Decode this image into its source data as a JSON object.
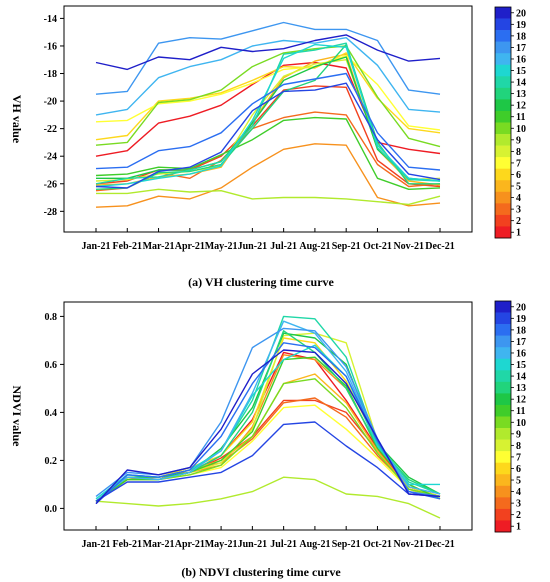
{
  "palette": [
    "#ee1c24",
    "#f2411f",
    "#f46a1d",
    "#f7911d",
    "#fbb61d",
    "#fdd81c",
    "#ffff33",
    "#d7f232",
    "#b1ea2d",
    "#79db22",
    "#3fcd2a",
    "#1ec746",
    "#21d47c",
    "#20d7a7",
    "#1ed7d1",
    "#3fb5f0",
    "#3d96f0",
    "#2b6ef1",
    "#2445e3",
    "#1f1fc9"
  ],
  "charts": [
    {
      "type": "line",
      "caption": "(a) VH clustering time curve",
      "ylabel": "VH value",
      "categories": [
        "Jan-21",
        "Feb-21",
        "Mar-21",
        "Apr-21",
        "May-21",
        "Jun-21",
        "Jul-21",
        "Aug-21",
        "Sep-21",
        "Oct-21",
        "Nov-21",
        "Dec-21"
      ],
      "ylim": [
        -29.5,
        -13.1
      ],
      "yticks": [
        "-14",
        "-16",
        "-18",
        "-20",
        "-22",
        "-24",
        "-26",
        "-28"
      ],
      "ytick_values": [
        -14,
        -16,
        -18,
        -20,
        -22,
        -24,
        -26,
        -28
      ],
      "colorbar_ticks": [
        "20",
        "19",
        "18",
        "17",
        "16",
        "15",
        "14",
        "13",
        "12",
        "11",
        "10",
        "9",
        "8",
        "7",
        "6",
        "5",
        "4",
        "3",
        "2",
        "1"
      ],
      "series": [
        {
          "values": [
            -24.0,
            -23.6,
            -21.6,
            -21.1,
            -20.3,
            -18.8,
            -17.4,
            -17.2,
            -17.6,
            -23.0,
            -23.5,
            -23.8
          ]
        },
        {
          "values": [
            -26.0,
            -25.8,
            -25.0,
            -25.0,
            -24.0,
            -21.8,
            -19.2,
            -18.9,
            -19.0,
            -24.3,
            -26.0,
            -26.2
          ]
        },
        {
          "values": [
            -26.5,
            -26.3,
            -25.2,
            -25.6,
            -24.3,
            -22.0,
            -21.2,
            -20.8,
            -21.0,
            -24.6,
            -26.2,
            -26.0
          ]
        },
        {
          "values": [
            -27.7,
            -27.6,
            -26.9,
            -27.1,
            -26.3,
            -24.8,
            -23.5,
            -23.1,
            -23.2,
            -27.0,
            -27.6,
            -27.4
          ]
        },
        {
          "values": [
            -26.1,
            -26.0,
            -25.5,
            -25.3,
            -24.8,
            -21.5,
            -18.3,
            -17.1,
            -16.6,
            -23.5,
            -25.8,
            -26.1
          ]
        },
        {
          "values": [
            -22.8,
            -22.5,
            -20.0,
            -19.8,
            -19.4,
            -18.5,
            -17.5,
            -17.6,
            -16.5,
            -19.8,
            -22.0,
            -22.3
          ]
        },
        {
          "values": [
            -21.5,
            -21.4,
            -20.2,
            -20.0,
            -19.5,
            -18.7,
            -17.7,
            -17.5,
            -16.7,
            -18.8,
            -21.8,
            -22.1
          ]
        },
        {
          "values": [
            -25.8,
            -25.7,
            -25.3,
            -25.1,
            -24.7,
            -21.0,
            -18.2,
            -17.3,
            -17.0,
            -23.2,
            -25.7,
            -25.6
          ]
        },
        {
          "values": [
            -26.7,
            -26.7,
            -26.4,
            -26.6,
            -26.5,
            -27.1,
            -27.0,
            -27.0,
            -27.1,
            -27.3,
            -27.5,
            -26.9
          ]
        },
        {
          "values": [
            -23.2,
            -23.0,
            -20.1,
            -19.9,
            -19.2,
            -17.5,
            -16.5,
            -16.2,
            -16.0,
            -19.7,
            -22.7,
            -23.3
          ]
        },
        {
          "values": [
            -25.4,
            -25.3,
            -24.8,
            -24.9,
            -23.9,
            -22.8,
            -21.4,
            -21.2,
            -21.3,
            -25.6,
            -26.4,
            -26.3
          ]
        },
        {
          "values": [
            -25.6,
            -25.6,
            -25.0,
            -25.0,
            -24.4,
            -21.6,
            -18.5,
            -17.5,
            -16.8,
            -23.5,
            -25.6,
            -25.8
          ]
        },
        {
          "values": [
            -26.4,
            -26.3,
            -25.2,
            -25.1,
            -24.6,
            -22.0,
            -19.3,
            -18.5,
            -15.9,
            -23.0,
            -26.0,
            -26.0
          ]
        },
        {
          "values": [
            -26.0,
            -25.6,
            -25.5,
            -25.0,
            -24.4,
            -21.8,
            -16.6,
            -16.3,
            -15.8,
            -23.4,
            -25.7,
            -25.8
          ]
        },
        {
          "values": [
            -26.2,
            -26.0,
            -25.6,
            -25.3,
            -24.7,
            -21.4,
            -16.9,
            -15.9,
            -16.1,
            -23.2,
            -25.6,
            -25.8
          ]
        },
        {
          "values": [
            -21.0,
            -20.6,
            -18.3,
            -17.5,
            -17.0,
            -16.0,
            -15.6,
            -15.8,
            -15.4,
            -17.4,
            -20.6,
            -20.8
          ]
        },
        {
          "values": [
            -19.5,
            -19.3,
            -15.8,
            -15.4,
            -15.5,
            -14.9,
            -14.3,
            -14.8,
            -14.8,
            -15.6,
            -19.2,
            -19.5
          ]
        },
        {
          "values": [
            -24.9,
            -24.8,
            -23.6,
            -23.3,
            -22.3,
            -20.2,
            -18.8,
            -18.4,
            -18.0,
            -22.3,
            -24.8,
            -25.0
          ]
        },
        {
          "values": [
            -26.2,
            -26.3,
            -25.1,
            -24.8,
            -23.7,
            -20.7,
            -19.3,
            -19.2,
            -18.7,
            -22.8,
            -25.3,
            -25.7
          ]
        },
        {
          "values": [
            -17.2,
            -17.7,
            -16.8,
            -17.0,
            -16.1,
            -16.4,
            -16.2,
            -15.6,
            -15.2,
            -16.3,
            -17.1,
            -16.9
          ]
        }
      ]
    },
    {
      "type": "line",
      "caption": "(b) NDVI clustering time curve",
      "ylabel": "NDVI value",
      "categories": [
        "Jan-21",
        "Feb-21",
        "Mar-21",
        "Apr-21",
        "May-21",
        "Jun-21",
        "Jul-21",
        "Aug-21",
        "Sep-21",
        "Oct-21",
        "Nov-21",
        "Dec-21"
      ],
      "ylim": [
        -0.09,
        0.86
      ],
      "yticks": [
        "0.8",
        "0.6",
        "0.4",
        "0.2",
        "0.0"
      ],
      "ytick_values": [
        0.8,
        0.6,
        0.4,
        0.2,
        0.0
      ],
      "colorbar_ticks": [
        "20",
        "19",
        "18",
        "17",
        "16",
        "15",
        "14",
        "13",
        "12",
        "11",
        "10",
        "9",
        "8",
        "7",
        "6",
        "5",
        "4",
        "3",
        "2",
        "1"
      ],
      "series": [
        {
          "values": [
            0.03,
            0.12,
            0.12,
            0.15,
            0.22,
            0.37,
            0.65,
            0.62,
            0.45,
            0.25,
            0.08,
            0.05
          ]
        },
        {
          "values": [
            0.03,
            0.12,
            0.13,
            0.15,
            0.21,
            0.3,
            0.45,
            0.45,
            0.4,
            0.24,
            0.09,
            0.05
          ]
        },
        {
          "values": [
            0.03,
            0.13,
            0.12,
            0.16,
            0.19,
            0.29,
            0.44,
            0.46,
            0.38,
            0.22,
            0.09,
            0.05
          ]
        },
        {
          "values": [
            0.03,
            0.13,
            0.13,
            0.15,
            0.18,
            0.34,
            0.64,
            0.62,
            0.5,
            0.26,
            0.1,
            0.04
          ]
        },
        {
          "values": [
            0.03,
            0.13,
            0.13,
            0.16,
            0.2,
            0.3,
            0.52,
            0.56,
            0.44,
            0.24,
            0.08,
            0.05
          ]
        },
        {
          "values": [
            0.03,
            0.13,
            0.13,
            0.17,
            0.22,
            0.36,
            0.71,
            0.69,
            0.53,
            0.27,
            0.08,
            0.04
          ]
        },
        {
          "values": [
            0.03,
            0.12,
            0.12,
            0.14,
            0.17,
            0.28,
            0.42,
            0.43,
            0.33,
            0.21,
            0.08,
            0.05
          ]
        },
        {
          "values": [
            0.03,
            0.13,
            0.12,
            0.15,
            0.19,
            0.33,
            0.72,
            0.73,
            0.69,
            0.28,
            0.09,
            0.05
          ]
        },
        {
          "values": [
            0.03,
            0.02,
            0.01,
            0.02,
            0.04,
            0.07,
            0.13,
            0.12,
            0.06,
            0.05,
            0.02,
            -0.04
          ]
        },
        {
          "values": [
            0.03,
            0.12,
            0.12,
            0.14,
            0.18,
            0.3,
            0.52,
            0.54,
            0.42,
            0.23,
            0.08,
            0.05
          ]
        },
        {
          "values": [
            0.03,
            0.12,
            0.12,
            0.15,
            0.2,
            0.32,
            0.62,
            0.63,
            0.51,
            0.25,
            0.1,
            0.04
          ]
        },
        {
          "values": [
            0.03,
            0.13,
            0.13,
            0.15,
            0.25,
            0.42,
            0.73,
            0.71,
            0.6,
            0.27,
            0.13,
            0.06
          ]
        },
        {
          "values": [
            0.03,
            0.13,
            0.12,
            0.15,
            0.22,
            0.4,
            0.74,
            0.65,
            0.5,
            0.26,
            0.12,
            0.06
          ]
        },
        {
          "values": [
            0.03,
            0.14,
            0.13,
            0.16,
            0.24,
            0.45,
            0.8,
            0.79,
            0.63,
            0.27,
            0.11,
            0.06
          ]
        },
        {
          "values": [
            0.04,
            0.14,
            0.13,
            0.16,
            0.24,
            0.47,
            0.62,
            0.68,
            0.55,
            0.26,
            0.1,
            0.1
          ]
        },
        {
          "values": [
            0.03,
            0.13,
            0.12,
            0.15,
            0.24,
            0.48,
            0.78,
            0.73,
            0.57,
            0.28,
            0.09,
            0.06
          ]
        },
        {
          "values": [
            0.05,
            0.15,
            0.14,
            0.17,
            0.36,
            0.67,
            0.75,
            0.74,
            0.59,
            0.29,
            0.07,
            0.05
          ]
        },
        {
          "values": [
            0.02,
            0.14,
            0.13,
            0.16,
            0.3,
            0.52,
            0.69,
            0.67,
            0.55,
            0.28,
            0.07,
            0.04
          ]
        },
        {
          "values": [
            0.03,
            0.11,
            0.11,
            0.13,
            0.15,
            0.22,
            0.35,
            0.36,
            0.26,
            0.17,
            0.06,
            0.05
          ]
        },
        {
          "values": [
            0.02,
            0.16,
            0.14,
            0.17,
            0.33,
            0.56,
            0.66,
            0.65,
            0.52,
            0.29,
            0.06,
            0.05
          ]
        }
      ]
    }
  ]
}
